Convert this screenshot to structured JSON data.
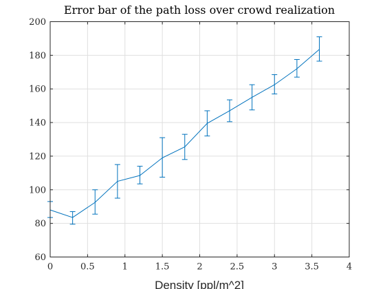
{
  "chart_data": {
    "type": "line",
    "title": "Error bar of the path loss over crowd realization",
    "xlabel": "Density [ppl/m^2]",
    "ylabel": "",
    "xlim": [
      0,
      4
    ],
    "ylim": [
      60,
      200
    ],
    "xticks": [
      "0",
      "0.5",
      "1",
      "1.5",
      "2",
      "2.5",
      "3",
      "3.5",
      "4"
    ],
    "yticks": [
      "60",
      "80",
      "100",
      "120",
      "140",
      "160",
      "180",
      "200"
    ],
    "grid": true,
    "color": "#0072bd",
    "series": [
      {
        "x": [
          0,
          0.3,
          0.6,
          0.9,
          1.2,
          1.5,
          1.8,
          2.1,
          2.4,
          2.7,
          3.0,
          3.3,
          3.6
        ],
        "y": [
          88,
          83.5,
          92.5,
          105,
          108.5,
          119,
          125.5,
          139.5,
          147,
          155,
          162.5,
          172,
          183.5
        ],
        "err_low": [
          83.5,
          79.5,
          85.5,
          95,
          103.5,
          107.5,
          118,
          132,
          140.5,
          147.5,
          157,
          167,
          176.5
        ],
        "err_high": [
          93,
          87,
          100,
          115,
          114,
          131,
          133,
          147,
          153.5,
          162.5,
          168.5,
          177.5,
          191
        ]
      }
    ]
  }
}
